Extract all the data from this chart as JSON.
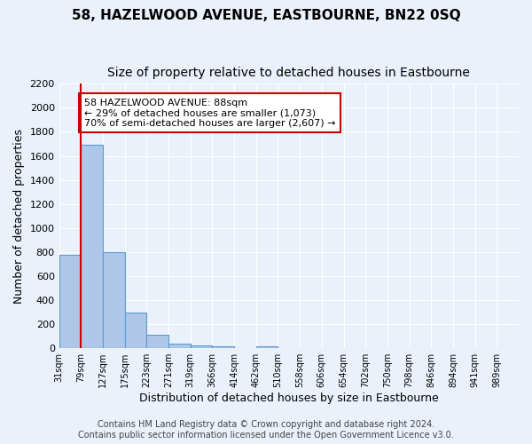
{
  "title": "58, HAZELWOOD AVENUE, EASTBOURNE, BN22 0SQ",
  "subtitle": "Size of property relative to detached houses in Eastbourne",
  "xlabel": "Distribution of detached houses by size in Eastbourne",
  "ylabel": "Number of detached properties",
  "bin_labels": [
    "31sqm",
    "79sqm",
    "127sqm",
    "175sqm",
    "223sqm",
    "271sqm",
    "319sqm",
    "366sqm",
    "414sqm",
    "462sqm",
    "510sqm",
    "558sqm",
    "606sqm",
    "654sqm",
    "702sqm",
    "750sqm",
    "798sqm",
    "846sqm",
    "894sqm",
    "941sqm",
    "989sqm"
  ],
  "bar_values": [
    780,
    1690,
    800,
    295,
    112,
    38,
    25,
    20,
    0,
    20,
    0,
    0,
    0,
    0,
    0,
    0,
    0,
    0,
    0,
    0,
    0
  ],
  "bar_color": "#aec6e8",
  "bar_edge_color": "#5b9bd5",
  "vline_x": 1,
  "vline_color": "#cc0000",
  "annotation_text": "58 HAZELWOOD AVENUE: 88sqm\n← 29% of detached houses are smaller (1,073)\n70% of semi-detached houses are larger (2,607) →",
  "annotation_box_color": "#ffffff",
  "annotation_box_edge": "#cc0000",
  "ylim": [
    0,
    2200
  ],
  "yticks": [
    0,
    200,
    400,
    600,
    800,
    1000,
    1200,
    1400,
    1600,
    1800,
    2000,
    2200
  ],
  "footer_line1": "Contains HM Land Registry data © Crown copyright and database right 2024.",
  "footer_line2": "Contains public sector information licensed under the Open Government Licence v3.0.",
  "bg_color": "#eaf1fb",
  "plot_bg_color": "#eaf1fb",
  "title_fontsize": 11,
  "subtitle_fontsize": 10,
  "xlabel_fontsize": 9,
  "ylabel_fontsize": 9,
  "footer_fontsize": 7
}
